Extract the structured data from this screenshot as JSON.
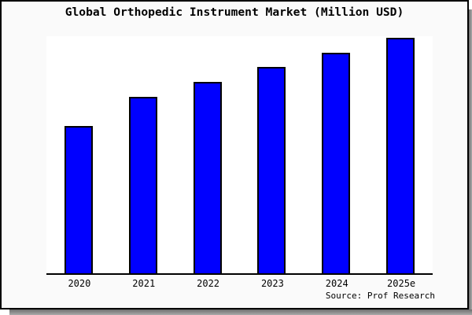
{
  "window": {
    "background_color": "#fafafa",
    "border_color": "#000000",
    "shadow_color": "#6e6e6e"
  },
  "header": {
    "title": "Global Orthopedic Instrument Market (Million USD)"
  },
  "footer": {
    "source": "Source: Prof Research"
  },
  "chart_data": {
    "type": "bar",
    "title": "Global Orthopedic Instrument Market (Million USD)",
    "unit": "Million USD",
    "categories": [
      "2020",
      "2021",
      "2022",
      "2023",
      "2024",
      "2025e"
    ],
    "values": [
      62.5,
      74.9,
      81.3,
      87.6,
      93.6,
      100
    ],
    "value_note": "Chart shows no y-axis scale, gridlines or data labels; values are bar heights relative to tallest bar (2025e = 100)",
    "xlabel": "",
    "ylabel": "",
    "ylim_relative": [
      0,
      101.3
    ],
    "gridlines": false,
    "legend_visible": false,
    "y_axis_labels_visible": false,
    "bar_color": "#0000ff",
    "bar_border_color": "#000000",
    "plot_background": "#ffffff",
    "source": "Source: Prof Research"
  }
}
